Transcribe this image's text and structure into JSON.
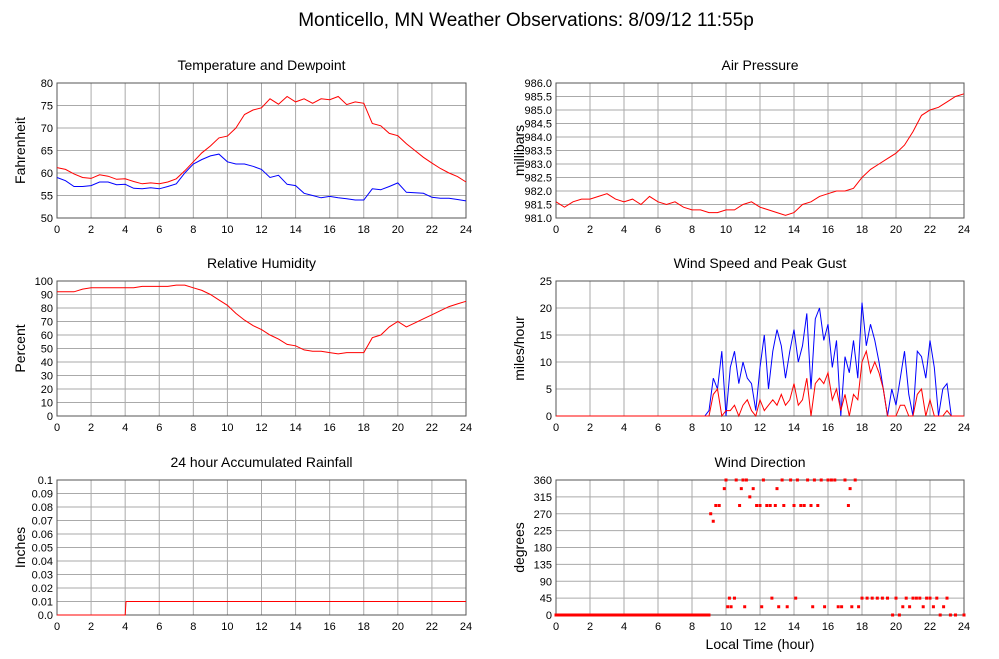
{
  "title": "Monticello, MN Weather Observations: 8/09/12 11:55p",
  "xlabel_bottom": "Local Time (hour)",
  "chart_data": [
    {
      "type": "line",
      "title": "Temperature and Dewpoint",
      "ylabel": "Fahrenheit",
      "xlim": [
        0,
        24
      ],
      "ylim": [
        50,
        80
      ],
      "xticks": [
        "0",
        "2",
        "4",
        "6",
        "8",
        "10",
        "12",
        "14",
        "16",
        "18",
        "20",
        "22",
        "24"
      ],
      "yticks": [
        "50",
        "55",
        "60",
        "65",
        "70",
        "75",
        "80"
      ],
      "grid": true,
      "x": [
        0,
        0.5,
        1,
        1.5,
        2,
        2.5,
        3,
        3.5,
        4,
        4.5,
        5,
        5.5,
        6,
        6.5,
        7,
        7.5,
        8,
        8.5,
        9,
        9.5,
        10,
        10.5,
        11,
        11.5,
        12,
        12.5,
        13,
        13.5,
        14,
        14.5,
        15,
        15.5,
        16,
        16.5,
        17,
        17.5,
        18,
        18.5,
        19,
        19.5,
        20,
        20.5,
        21,
        21.5,
        22,
        22.5,
        23,
        23.5,
        24
      ],
      "series": [
        {
          "name": "Temperature",
          "color": "#ff0000",
          "values": [
            61.2,
            60.8,
            59.8,
            59,
            58.8,
            59.6,
            59.3,
            58.6,
            58.7,
            58.1,
            57.6,
            57.8,
            57.6,
            58,
            58.7,
            60.5,
            62.5,
            64.5,
            66,
            67.8,
            68.2,
            70,
            73,
            74,
            74.5,
            76.5,
            75.3,
            77,
            75.8,
            76.5,
            75.5,
            76.5,
            76.3,
            77,
            75.2,
            75.8,
            75.5,
            71,
            70.5,
            68.8,
            68.3,
            66.5,
            65,
            63.5,
            62.2,
            61,
            60,
            59.2,
            58
          ]
        },
        {
          "name": "Dewpoint",
          "color": "#0000ff",
          "values": [
            59,
            58.3,
            57,
            57,
            57.2,
            58,
            58,
            57.4,
            57.5,
            56.6,
            56.5,
            56.7,
            56.5,
            57,
            57.6,
            60,
            62,
            63,
            63.8,
            64.2,
            62.5,
            62,
            62,
            61.5,
            60.8,
            59,
            59.5,
            57.5,
            57.2,
            55.5,
            55,
            54.5,
            54.8,
            54.5,
            54.3,
            54,
            54,
            56.5,
            56.3,
            57,
            57.8,
            55.7,
            55.6,
            55.5,
            54.6,
            54.4,
            54.4,
            54.1,
            53.8
          ]
        }
      ]
    },
    {
      "type": "line",
      "title": "Air Pressure",
      "ylabel": "millibars",
      "xlim": [
        0,
        24
      ],
      "ylim": [
        981.0,
        986.0
      ],
      "xticks": [
        "0",
        "2",
        "4",
        "6",
        "8",
        "10",
        "12",
        "14",
        "16",
        "18",
        "20",
        "22",
        "24"
      ],
      "yticks": [
        "981.0",
        "981.5",
        "982.0",
        "982.5",
        "983.0",
        "983.5",
        "984.0",
        "984.5",
        "985.0",
        "985.5",
        "986.0"
      ],
      "grid": true,
      "x": [
        0,
        0.5,
        1,
        1.5,
        2,
        2.5,
        3,
        3.5,
        4,
        4.5,
        5,
        5.5,
        6,
        6.5,
        7,
        7.5,
        8,
        8.5,
        9,
        9.5,
        10,
        10.5,
        11,
        11.5,
        12,
        12.5,
        13,
        13.5,
        14,
        14.5,
        15,
        15.5,
        16,
        16.5,
        17,
        17.5,
        18,
        18.5,
        19,
        19.5,
        20,
        20.5,
        21,
        21.5,
        22,
        22.5,
        23,
        23.5,
        24
      ],
      "series": [
        {
          "name": "Pressure",
          "color": "#ff0000",
          "values": [
            981.6,
            981.4,
            981.6,
            981.7,
            981.7,
            981.8,
            981.9,
            981.7,
            981.6,
            981.7,
            981.5,
            981.8,
            981.6,
            981.5,
            981.6,
            981.4,
            981.3,
            981.3,
            981.2,
            981.2,
            981.3,
            981.3,
            981.5,
            981.6,
            981.4,
            981.3,
            981.2,
            981.1,
            981.2,
            981.5,
            981.6,
            981.8,
            981.9,
            982,
            982,
            982.1,
            982.5,
            982.8,
            983,
            983.2,
            983.4,
            983.7,
            984.2,
            984.8,
            985,
            985.1,
            985.3,
            985.5,
            985.6
          ]
        }
      ]
    },
    {
      "type": "line",
      "title": "Relative Humidity",
      "ylabel": "Percent",
      "xlim": [
        0,
        24
      ],
      "ylim": [
        0,
        100
      ],
      "xticks": [
        "0",
        "2",
        "4",
        "6",
        "8",
        "10",
        "12",
        "14",
        "16",
        "18",
        "20",
        "22",
        "24"
      ],
      "yticks": [
        "0",
        "10",
        "20",
        "30",
        "40",
        "50",
        "60",
        "70",
        "80",
        "90",
        "100"
      ],
      "grid": true,
      "x": [
        0,
        0.5,
        1,
        1.5,
        2,
        2.5,
        3,
        3.5,
        4,
        4.5,
        5,
        5.5,
        6,
        6.5,
        7,
        7.5,
        8,
        8.5,
        9,
        9.5,
        10,
        10.5,
        11,
        11.5,
        12,
        12.5,
        13,
        13.5,
        14,
        14.5,
        15,
        15.5,
        16,
        16.5,
        17,
        17.5,
        18,
        18.5,
        19,
        19.5,
        20,
        20.5,
        21,
        21.5,
        22,
        22.5,
        23,
        23.5,
        24
      ],
      "series": [
        {
          "name": "Relative Humidity",
          "color": "#ff0000",
          "values": [
            92,
            92,
            92,
            94,
            95,
            95,
            95,
            95,
            95,
            95,
            96,
            96,
            96,
            96,
            97,
            97,
            95,
            93,
            90,
            86,
            82,
            76,
            71,
            67,
            64,
            60,
            57,
            53,
            52,
            49,
            48,
            48,
            47,
            46,
            47,
            47,
            47,
            58,
            60,
            66,
            70,
            66,
            69,
            72,
            75,
            78,
            81,
            83,
            85
          ]
        }
      ]
    },
    {
      "type": "line",
      "title": "Wind Speed and Peak Gust",
      "ylabel": "miles/hour",
      "xlim": [
        0,
        24
      ],
      "ylim": [
        0,
        25
      ],
      "xticks": [
        "0",
        "2",
        "4",
        "6",
        "8",
        "10",
        "12",
        "14",
        "16",
        "18",
        "20",
        "22",
        "24"
      ],
      "yticks": [
        "0",
        "5",
        "10",
        "15",
        "20",
        "25"
      ],
      "grid": true,
      "x": [
        0,
        8.75,
        9,
        9.25,
        9.5,
        9.75,
        10,
        10.25,
        10.5,
        10.75,
        11,
        11.25,
        11.5,
        11.75,
        12,
        12.25,
        12.5,
        12.75,
        13,
        13.25,
        13.5,
        13.75,
        14,
        14.25,
        14.5,
        14.75,
        15,
        15.25,
        15.5,
        15.75,
        16,
        16.25,
        16.5,
        16.75,
        17,
        17.25,
        17.5,
        17.75,
        18,
        18.25,
        18.5,
        18.75,
        19,
        19.25,
        19.5,
        19.75,
        20,
        20.25,
        20.5,
        20.75,
        21,
        21.25,
        21.5,
        21.75,
        22,
        22.25,
        22.5,
        22.75,
        23,
        23.25,
        24
      ],
      "series": [
        {
          "name": "Peak Gust",
          "color": "#0000ff",
          "values": [
            0,
            0,
            1,
            7,
            5,
            12,
            0,
            9,
            12,
            6,
            10,
            7,
            6,
            1,
            9,
            15,
            5,
            12,
            16,
            13,
            7,
            12,
            16,
            10,
            13,
            19,
            5,
            18,
            20,
            14,
            17,
            9,
            14,
            0,
            11,
            8,
            14,
            7,
            21,
            13,
            17,
            14,
            10,
            5,
            0,
            5,
            2,
            7,
            12,
            4,
            0,
            12,
            11,
            7,
            14,
            9,
            0,
            5,
            6,
            0,
            0
          ]
        },
        {
          "name": "Wind Speed",
          "color": "#ff0000",
          "values": [
            0,
            0,
            0,
            4,
            5,
            0,
            1,
            1,
            2,
            0,
            2,
            3,
            1,
            0,
            3,
            1,
            2,
            3,
            2,
            4,
            2,
            3,
            6,
            2,
            3,
            7,
            0,
            6,
            7,
            6,
            8,
            3,
            5,
            1,
            4,
            0,
            4,
            3,
            10,
            12,
            8,
            10,
            8,
            5,
            0,
            0,
            0,
            2,
            2,
            0,
            0,
            4,
            5,
            0,
            3,
            0,
            0,
            0,
            1,
            0,
            0
          ]
        }
      ]
    },
    {
      "type": "line",
      "title": "24 hour Accumulated Rainfall",
      "ylabel": "Inches",
      "xlim": [
        0,
        24
      ],
      "ylim": [
        0,
        0.1
      ],
      "xticks": [
        "0",
        "2",
        "4",
        "6",
        "8",
        "10",
        "12",
        "14",
        "16",
        "18",
        "20",
        "22",
        "24"
      ],
      "yticks": [
        "0.0",
        "0.01",
        "0.02",
        "0.03",
        "0.04",
        "0.05",
        "0.06",
        "0.07",
        "0.08",
        "0.09",
        "0.1"
      ],
      "grid": true,
      "x": [
        0,
        4.0,
        4.05,
        24
      ],
      "series": [
        {
          "name": "Rainfall",
          "color": "#ff0000",
          "values": [
            0,
            0,
            0.01,
            0.01
          ]
        }
      ]
    },
    {
      "type": "scatter",
      "title": "Wind Direction",
      "ylabel": "degrees",
      "xlabel": "Local Time (hour)",
      "xlim": [
        0,
        24
      ],
      "ylim": [
        0,
        360
      ],
      "xticks": [
        "0",
        "2",
        "4",
        "6",
        "8",
        "10",
        "12",
        "14",
        "16",
        "18",
        "20",
        "22",
        "24"
      ],
      "yticks": [
        "0",
        "45",
        "90",
        "135",
        "180",
        "225",
        "270",
        "315",
        "360"
      ],
      "grid": true,
      "series": [
        {
          "name": "Direction",
          "color": "#ff0000",
          "points": [
            [
              0,
              0
            ],
            [
              0.5,
              0
            ],
            [
              1,
              0
            ],
            [
              1.5,
              0
            ],
            [
              2,
              0
            ],
            [
              2.5,
              0
            ],
            [
              3,
              0
            ],
            [
              3.5,
              0
            ],
            [
              4,
              0
            ],
            [
              4.5,
              0
            ],
            [
              5,
              0
            ],
            [
              5.5,
              0
            ],
            [
              6,
              0
            ],
            [
              6.5,
              0
            ],
            [
              7,
              0
            ],
            [
              7.5,
              0
            ],
            [
              8,
              0
            ],
            [
              8.5,
              0
            ],
            [
              9,
              0
            ],
            [
              9.1,
              270
            ],
            [
              9.25,
              250
            ],
            [
              9.4,
              292
            ],
            [
              9.6,
              292
            ],
            [
              9.9,
              337
            ],
            [
              10,
              360
            ],
            [
              10.1,
              22
            ],
            [
              10.2,
              45
            ],
            [
              10.3,
              22
            ],
            [
              10.5,
              45
            ],
            [
              10.6,
              360
            ],
            [
              10.8,
              292
            ],
            [
              10.9,
              337
            ],
            [
              11,
              360
            ],
            [
              11.1,
              22
            ],
            [
              11.2,
              360
            ],
            [
              11.4,
              315
            ],
            [
              11.6,
              337
            ],
            [
              11.8,
              292
            ],
            [
              12,
              292
            ],
            [
              12.1,
              22
            ],
            [
              12.2,
              360
            ],
            [
              12.4,
              292
            ],
            [
              12.6,
              292
            ],
            [
              12.7,
              45
            ],
            [
              12.9,
              292
            ],
            [
              13,
              337
            ],
            [
              13.1,
              22
            ],
            [
              13.3,
              360
            ],
            [
              13.4,
              292
            ],
            [
              13.6,
              22
            ],
            [
              13.8,
              360
            ],
            [
              14,
              292
            ],
            [
              14.1,
              45
            ],
            [
              14.2,
              360
            ],
            [
              14.4,
              292
            ],
            [
              14.6,
              292
            ],
            [
              14.8,
              360
            ],
            [
              15,
              292
            ],
            [
              15.1,
              22
            ],
            [
              15.2,
              360
            ],
            [
              15.4,
              292
            ],
            [
              15.6,
              360
            ],
            [
              15.8,
              22
            ],
            [
              16,
              360
            ],
            [
              16.2,
              360
            ],
            [
              16.4,
              360
            ],
            [
              16.6,
              22
            ],
            [
              16.8,
              22
            ],
            [
              17,
              360
            ],
            [
              17.2,
              292
            ],
            [
              17.3,
              337
            ],
            [
              17.4,
              22
            ],
            [
              17.6,
              360
            ],
            [
              17.8,
              22
            ],
            [
              18,
              45
            ],
            [
              18.3,
              45
            ],
            [
              18.6,
              45
            ],
            [
              18.9,
              45
            ],
            [
              19.2,
              45
            ],
            [
              19.5,
              45
            ],
            [
              19.8,
              0
            ],
            [
              20,
              45
            ],
            [
              20.2,
              0
            ],
            [
              20.4,
              22
            ],
            [
              20.6,
              45
            ],
            [
              20.8,
              22
            ],
            [
              21,
              45
            ],
            [
              21.2,
              45
            ],
            [
              21.4,
              45
            ],
            [
              21.6,
              22
            ],
            [
              21.8,
              45
            ],
            [
              22,
              45
            ],
            [
              22.2,
              22
            ],
            [
              22.4,
              45
            ],
            [
              22.6,
              0
            ],
            [
              22.8,
              22
            ],
            [
              23,
              45
            ],
            [
              23.2,
              0
            ],
            [
              23.5,
              0
            ],
            [
              24,
              0
            ]
          ]
        }
      ]
    }
  ]
}
